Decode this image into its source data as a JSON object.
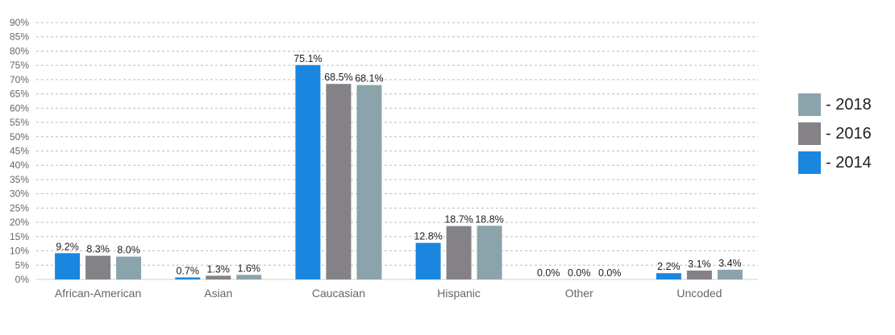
{
  "chart_data": {
    "type": "bar",
    "categories": [
      "African-American",
      "Asian",
      "Caucasian",
      "Hispanic",
      "Other",
      "Uncoded"
    ],
    "series": [
      {
        "name": "2014",
        "color": "#1a86e0",
        "values": [
          9.2,
          0.7,
          75.1,
          12.8,
          0.0,
          2.2
        ],
        "labels": [
          "9.2%",
          "0.7%",
          "75.1%",
          "12.8%",
          "0.0%",
          "2.2%"
        ]
      },
      {
        "name": "2016",
        "color": "#848287",
        "values": [
          8.3,
          1.3,
          68.5,
          18.7,
          0.0,
          3.1
        ],
        "labels": [
          "8.3%",
          "1.3%",
          "68.5%",
          "18.7%",
          "0.0%",
          "3.1%"
        ]
      },
      {
        "name": "2018",
        "color": "#8ba3ab",
        "values": [
          8.0,
          1.6,
          68.1,
          18.8,
          0.0,
          3.4
        ],
        "labels": [
          "8.0%",
          "1.6%",
          "68.1%",
          "18.8%",
          "0.0%",
          "3.4%"
        ]
      }
    ],
    "ylim": [
      0,
      90
    ],
    "yticks": [
      "0%",
      "5%",
      "10%",
      "15%",
      "20%",
      "25%",
      "30%",
      "35%",
      "40%",
      "45%",
      "50%",
      "55%",
      "60%",
      "65%",
      "70%",
      "75%",
      "80%",
      "85%",
      "90%"
    ],
    "grid": true,
    "legend_position": "right",
    "legend": [
      {
        "label": "- 2018",
        "color": "#8ba3ab"
      },
      {
        "label": "- 2016",
        "color": "#848287"
      },
      {
        "label": "- 2014",
        "color": "#1a86e0"
      }
    ]
  }
}
